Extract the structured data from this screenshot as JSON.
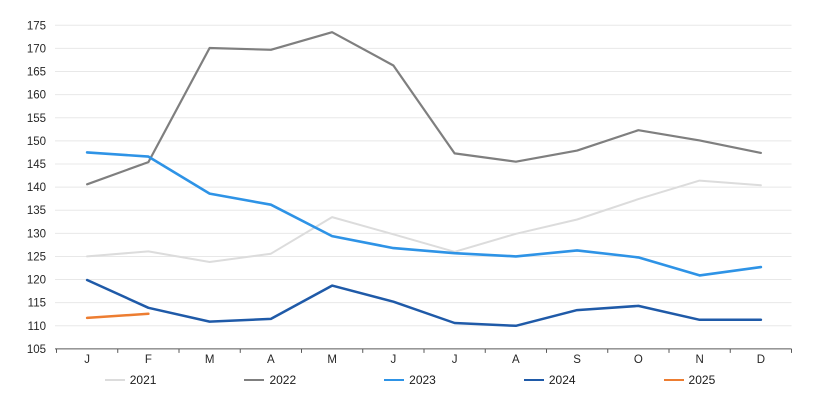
{
  "chart_data": {
    "type": "line",
    "title": "",
    "xlabel": "",
    "ylabel": "",
    "categories": [
      "J",
      "F",
      "M",
      "A",
      "M",
      "J",
      "J",
      "A",
      "S",
      "O",
      "N",
      "D"
    ],
    "y_axis": {
      "min": 105,
      "max": 175,
      "step": 5,
      "tick_labels": [
        "105",
        "110",
        "115",
        "120",
        "125",
        "130",
        "135",
        "140",
        "145",
        "150",
        "155",
        "160",
        "165",
        "170",
        "175"
      ]
    },
    "grid": true,
    "legend_position": "bottom",
    "colors": {
      "gridline": "#e8e8e8",
      "axis": "#595959",
      "tick_text": "#262626",
      "legend_text": "#1a1a1a",
      "background": "#ffffff"
    },
    "series": [
      {
        "name": "2021",
        "color": "#dcdcdc",
        "line_width": 2.0,
        "values": [
          125.0,
          126.1,
          123.8,
          125.6,
          133.5,
          129.8,
          126.0,
          129.9,
          133.0,
          137.4,
          141.4,
          140.4
        ]
      },
      {
        "name": "2022",
        "color": "#7f7f7f",
        "line_width": 2.2,
        "values": [
          140.6,
          145.4,
          170.1,
          169.7,
          173.5,
          166.3,
          147.3,
          145.5,
          147.9,
          152.3,
          150.1,
          147.4
        ]
      },
      {
        "name": "2023",
        "color": "#2e93e6",
        "line_width": 2.6,
        "values": [
          147.5,
          146.6,
          138.6,
          136.2,
          129.4,
          126.8,
          125.7,
          125.0,
          126.3,
          124.8,
          120.9,
          122.7
        ]
      },
      {
        "name": "2024",
        "color": "#1f5aa8",
        "line_width": 2.5,
        "values": [
          119.9,
          113.9,
          110.9,
          111.5,
          118.7,
          115.2,
          110.6,
          110.0,
          113.4,
          114.3,
          111.3,
          111.3
        ]
      },
      {
        "name": "2025",
        "color": "#ed7d31",
        "line_width": 2.5,
        "values": [
          111.7,
          112.6
        ]
      }
    ]
  }
}
